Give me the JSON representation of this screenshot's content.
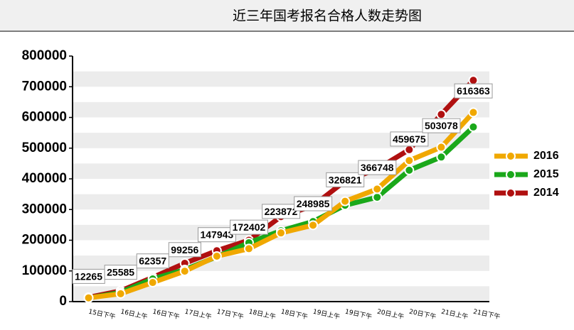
{
  "chart_data": {
    "type": "line",
    "title": "近三年国考报名合格人数走势图",
    "categories": [
      "15日下午",
      "16日上午",
      "16日下午",
      "17日上午",
      "17日下午",
      "18日上午",
      "18日下午",
      "19日上午",
      "19日下午",
      "20日上午",
      "20日下午",
      "21日上午",
      "21日下午"
    ],
    "series": [
      {
        "name": "2016",
        "color": "#f0a800",
        "values": [
          12265,
          25585,
          62357,
          99256,
          147943,
          172402,
          223872,
          248985,
          326821,
          366748,
          459675,
          503078,
          616363
        ],
        "data_labels": true
      },
      {
        "name": "2015",
        "color": "#1aa81a",
        "values": [
          11600,
          30000,
          74000,
          104000,
          146000,
          192000,
          231000,
          261000,
          314000,
          340000,
          428000,
          471000,
          569000
        ]
      },
      {
        "name": "2014",
        "color": "#b01010",
        "values": [
          14000,
          35000,
          79000,
          125000,
          166000,
          200000,
          277000,
          312000,
          393000,
          432000,
          495000,
          610000,
          721000
        ]
      }
    ],
    "ylim": [
      0,
      800000
    ],
    "yticks": [
      0,
      100000,
      200000,
      300000,
      400000,
      500000,
      600000,
      700000,
      800000
    ],
    "grid": "bands",
    "legend": "right"
  }
}
